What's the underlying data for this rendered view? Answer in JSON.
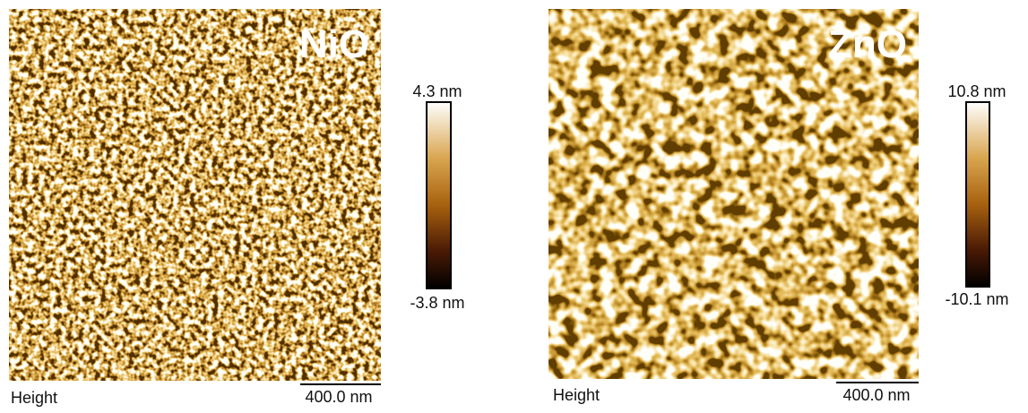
{
  "panels": [
    {
      "label": "NiO",
      "colorbar": {
        "max": "4.3 nm",
        "min": "-3.8 nm"
      },
      "channel": "Height",
      "scale_bar": "400.0 nm"
    },
    {
      "label": "ZnO",
      "colorbar": {
        "max": "10.8 nm",
        "min": "-10.1 nm"
      },
      "channel": "Height",
      "scale_bar": "400.0 nm"
    }
  ]
}
